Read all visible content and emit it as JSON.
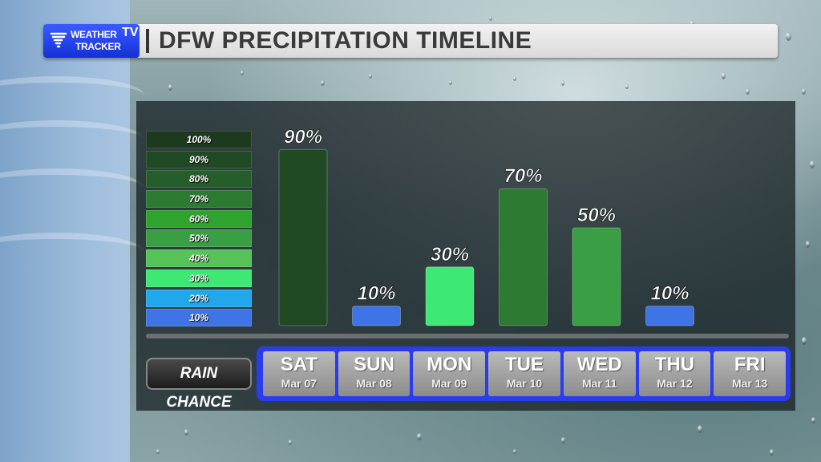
{
  "header": {
    "logo_line1": "WEATHER",
    "logo_line2": "TRACKER",
    "logo_tv": "TV",
    "title": "DFW PRECIPITATION TIMELINE"
  },
  "legend": [
    {
      "label": "100%",
      "color": "#1d3a1f"
    },
    {
      "label": "90%",
      "color": "#1f4a24"
    },
    {
      "label": "80%",
      "color": "#255e2a"
    },
    {
      "label": "70%",
      "color": "#2d7a33"
    },
    {
      "label": "60%",
      "color": "#2ea32e"
    },
    {
      "label": "50%",
      "color": "#3a9e45"
    },
    {
      "label": "40%",
      "color": "#56c257"
    },
    {
      "label": "30%",
      "color": "#3fe874"
    },
    {
      "label": "20%",
      "color": "#21a8ea"
    },
    {
      "label": "10%",
      "color": "#3f74e6"
    }
  ],
  "row_label": "RAIN CHANCE",
  "chart_data": {
    "type": "bar",
    "categories": [
      "SAT",
      "SUN",
      "MON",
      "TUE",
      "WED",
      "THU",
      "FRI"
    ],
    "dates": [
      "Mar 07",
      "Mar 08",
      "Mar 09",
      "Mar 10",
      "Mar 11",
      "Mar 12",
      "Mar 13"
    ],
    "values": [
      90,
      10,
      30,
      70,
      50,
      10,
      null
    ],
    "value_labels": [
      "90%",
      "10%",
      "30%",
      "70%",
      "50%",
      "10%",
      ""
    ],
    "colors": [
      "#1f4a24",
      "#3f74e6",
      "#3fe874",
      "#2d7a33",
      "#3a9e45",
      "#3f74e6",
      ""
    ],
    "ylim": [
      0,
      100
    ],
    "title": "DFW PRECIPITATION TIMELINE",
    "xlabel": "",
    "ylabel": "RAIN CHANCE"
  }
}
